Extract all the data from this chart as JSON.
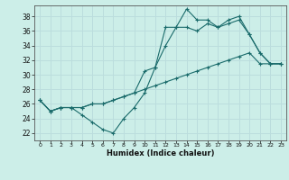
{
  "xlabel": "Humidex (Indice chaleur)",
  "ylabel": "",
  "xlim": [
    -0.5,
    23.5
  ],
  "ylim": [
    21.0,
    39.5
  ],
  "yticks": [
    22,
    24,
    26,
    28,
    30,
    32,
    34,
    36,
    38
  ],
  "xticks": [
    0,
    1,
    2,
    3,
    4,
    5,
    6,
    7,
    8,
    9,
    10,
    11,
    12,
    13,
    14,
    15,
    16,
    17,
    18,
    19,
    20,
    21,
    22,
    23
  ],
  "bg_color": "#cceee8",
  "grid_color": "#bbdddd",
  "line_color": "#1a6b6b",
  "series": [
    [
      26.5,
      25.0,
      25.5,
      25.5,
      24.5,
      23.5,
      22.5,
      22.0,
      24.0,
      25.5,
      27.5,
      31.0,
      36.5,
      36.5,
      39.0,
      37.5,
      37.5,
      36.5,
      37.5,
      38.0,
      35.5,
      33.0,
      31.5,
      31.5
    ],
    [
      26.5,
      25.0,
      25.5,
      25.5,
      25.5,
      26.0,
      26.0,
      26.5,
      27.0,
      27.5,
      28.0,
      28.5,
      29.0,
      29.5,
      30.0,
      30.5,
      31.0,
      31.5,
      32.0,
      32.5,
      33.0,
      31.5,
      31.5,
      31.5
    ],
    [
      26.5,
      25.0,
      25.5,
      25.5,
      25.5,
      26.0,
      26.0,
      26.5,
      27.0,
      27.5,
      30.5,
      31.0,
      34.0,
      36.5,
      36.5,
      36.0,
      37.0,
      36.5,
      37.0,
      37.5,
      35.5,
      33.0,
      31.5,
      31.5
    ]
  ]
}
